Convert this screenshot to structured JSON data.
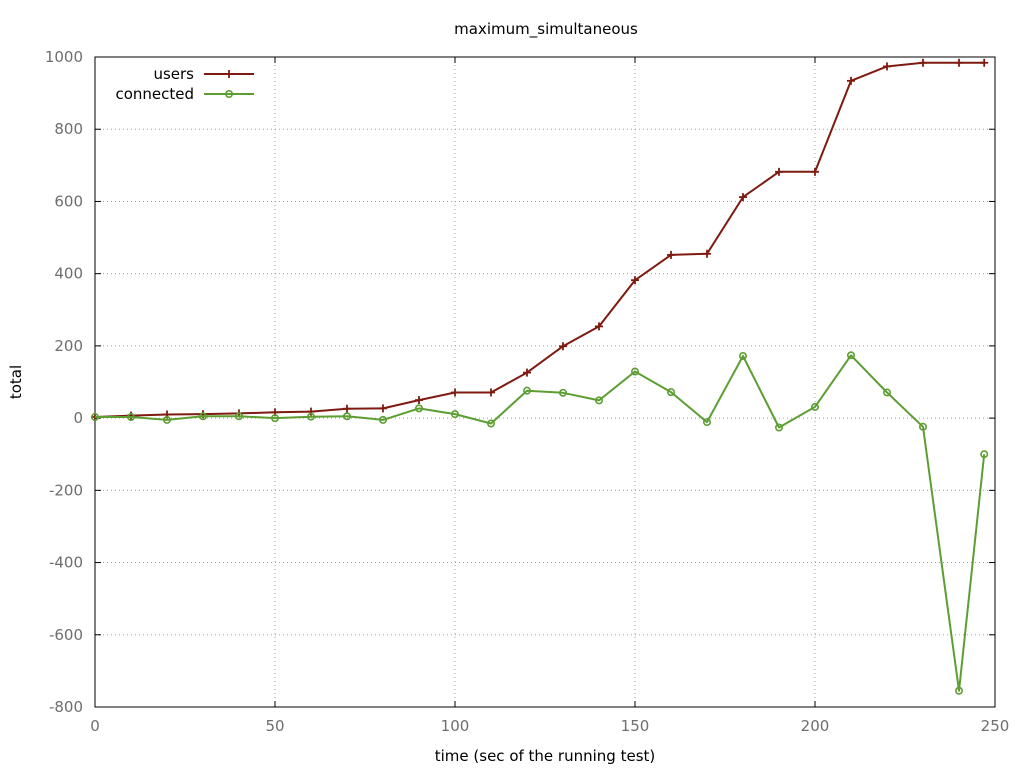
{
  "chart_data": {
    "type": "line",
    "title": "maximum_simultaneous",
    "xlabel": "time (sec of the running test)",
    "ylabel": "total",
    "xlim": [
      0,
      250
    ],
    "ylim": [
      -800,
      1000
    ],
    "xticks": [
      0,
      50,
      100,
      150,
      200,
      250
    ],
    "yticks": [
      -800,
      -600,
      -400,
      -200,
      0,
      200,
      400,
      600,
      800,
      1000
    ],
    "grid": true,
    "legend_position": "top-left",
    "series": [
      {
        "name": "users",
        "color": "#7f1a10",
        "marker": "plus",
        "x": [
          0,
          10,
          20,
          30,
          40,
          50,
          60,
          70,
          80,
          90,
          100,
          110,
          120,
          130,
          140,
          150,
          160,
          170,
          180,
          190,
          200,
          210,
          220,
          230,
          240,
          247
        ],
        "y": [
          3,
          7,
          10,
          11,
          13,
          16,
          18,
          26,
          27,
          50,
          71,
          71,
          126,
          199,
          254,
          382,
          452,
          455,
          612,
          682,
          682,
          934,
          974,
          984,
          984,
          984
        ]
      },
      {
        "name": "connected",
        "color": "#5c9e32",
        "marker": "circle",
        "x": [
          0,
          10,
          20,
          30,
          40,
          50,
          60,
          70,
          80,
          90,
          100,
          110,
          120,
          130,
          140,
          150,
          160,
          170,
          180,
          190,
          200,
          210,
          220,
          230,
          240,
          247
        ],
        "y": [
          3,
          3,
          -5,
          5,
          5,
          0,
          4,
          5,
          -5,
          27,
          11,
          -15,
          76,
          70,
          49,
          129,
          72,
          -11,
          172,
          -26,
          31,
          174,
          71,
          -24,
          -755,
          -100
        ]
      }
    ]
  }
}
